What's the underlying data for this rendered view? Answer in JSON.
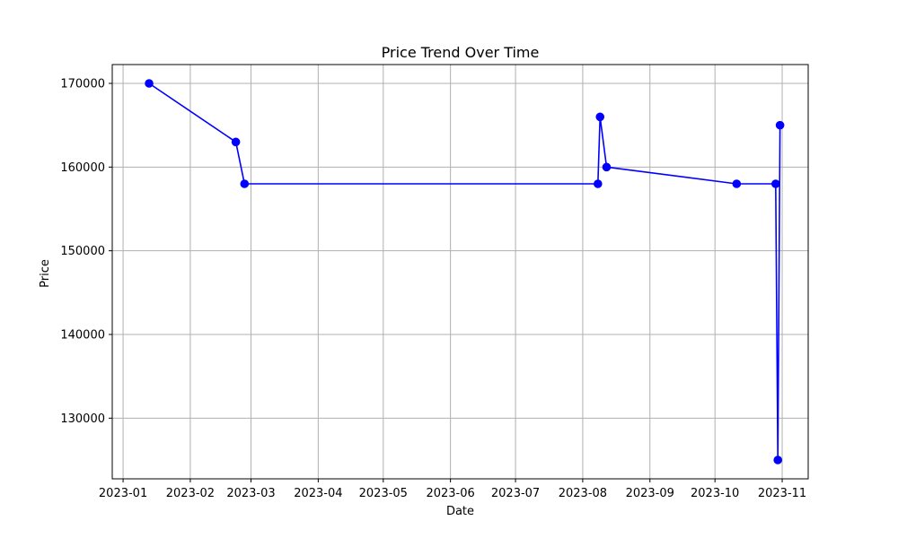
{
  "chart_data": {
    "type": "line",
    "title": "Price Trend Over Time",
    "xlabel": "Date",
    "ylabel": "Price",
    "x_axis_type": "date",
    "xlim": [
      "2022-12-27",
      "2023-11-13"
    ],
    "ylim": [
      122750,
      172250
    ],
    "x_ticks": [
      "2023-01-01",
      "2023-02-01",
      "2023-03-01",
      "2023-04-01",
      "2023-05-01",
      "2023-06-01",
      "2023-07-01",
      "2023-08-01",
      "2023-09-01",
      "2023-10-01",
      "2023-11-01"
    ],
    "x_tick_labels": [
      "2023-01",
      "2023-02",
      "2023-03",
      "2023-04",
      "2023-05",
      "2023-06",
      "2023-07",
      "2023-08",
      "2023-09",
      "2023-10",
      "2023-11"
    ],
    "y_ticks": [
      130000,
      140000,
      150000,
      160000,
      170000
    ],
    "y_tick_labels": [
      "130000",
      "140000",
      "150000",
      "160000",
      "170000"
    ],
    "grid": true,
    "colors": {
      "series": "#0000ff",
      "grid": "#b0b0b0",
      "axes": "#000000"
    },
    "series": [
      {
        "marker": "circle",
        "points": [
          {
            "x": "2023-01-13",
            "y": 170000
          },
          {
            "x": "2023-02-22",
            "y": 163000
          },
          {
            "x": "2023-02-26",
            "y": 158000
          },
          {
            "x": "2023-08-08",
            "y": 158000
          },
          {
            "x": "2023-08-09",
            "y": 166000
          },
          {
            "x": "2023-08-12",
            "y": 160000
          },
          {
            "x": "2023-10-11",
            "y": 158000
          },
          {
            "x": "2023-10-29",
            "y": 158000
          },
          {
            "x": "2023-10-30",
            "y": 125000
          },
          {
            "x": "2023-10-31",
            "y": 165000
          }
        ]
      }
    ]
  }
}
